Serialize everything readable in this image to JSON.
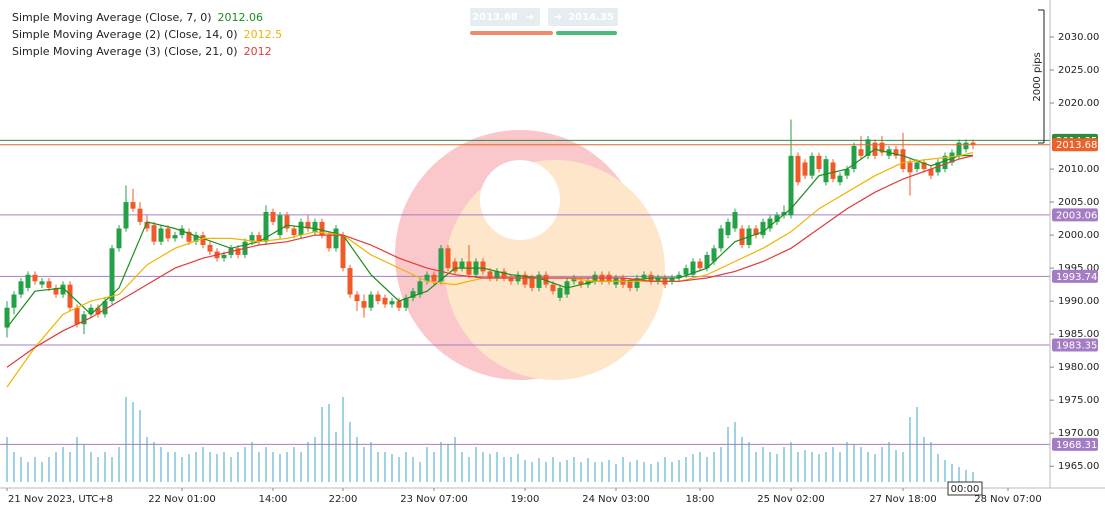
{
  "chart_data": {
    "type": "candlestick",
    "up_color": "#24a148",
    "down_color": "#f05a28",
    "xlim": [
      -1,
      149
    ],
    "ylim": [
      1961.7,
      2035.6
    ],
    "yticks": [
      {
        "value": 1965,
        "label": "1965.00"
      },
      {
        "value": 1970,
        "label": "1970.00"
      },
      {
        "value": 1975,
        "label": "1975.00"
      },
      {
        "value": 1980,
        "label": "1980.00"
      },
      {
        "value": 1985,
        "label": "1985.00"
      },
      {
        "value": 1990,
        "label": "1990.00"
      },
      {
        "value": 1995,
        "label": "1995.00"
      },
      {
        "value": 2000,
        "label": "2000.00"
      },
      {
        "value": 2005,
        "label": "2005.00"
      },
      {
        "value": 2010,
        "label": "2010.00"
      },
      {
        "value": 2020,
        "label": "2020.00"
      },
      {
        "value": 2025,
        "label": "2025.00"
      },
      {
        "value": 2030,
        "label": "2030.00"
      }
    ],
    "xticks": [
      {
        "value": 0,
        "label": "21 Nov 2023, UTC+8"
      },
      {
        "value": 25,
        "label": "22 Nov 01:00"
      },
      {
        "value": 38,
        "label": "14:00"
      },
      {
        "value": 48,
        "label": "22:00"
      },
      {
        "value": 61,
        "label": "23 Nov 07:00"
      },
      {
        "value": 74,
        "label": "19:00"
      },
      {
        "value": 87,
        "label": "24 Nov 03:00"
      },
      {
        "value": 99,
        "label": "18:00"
      },
      {
        "value": 112,
        "label": "25 Nov 02:00"
      },
      {
        "value": 128,
        "label": "27 Nov 18:00"
      },
      {
        "value": 143,
        "label": "28 Nov 07:00"
      }
    ],
    "ohlc": [
      [
        1986,
        1990,
        1984.5,
        1989
      ],
      [
        1989,
        1991.5,
        1988,
        1991
      ],
      [
        1991,
        1993.5,
        1990.5,
        1993
      ],
      [
        1992,
        1994.5,
        1991.5,
        1994
      ],
      [
        1994,
        1994.5,
        1992.5,
        1993
      ],
      [
        1992.5,
        1993.5,
        1992,
        1993
      ],
      [
        1993,
        1993.5,
        1991.5,
        1992
      ],
      [
        1992,
        1992.5,
        1990.5,
        1991
      ],
      [
        1991,
        1993,
        1990.5,
        1992.5
      ],
      [
        1992.5,
        1993,
        1988.5,
        1989
      ],
      [
        1989,
        1989.5,
        1986,
        1986.5
      ],
      [
        1986.5,
        1988.5,
        1985,
        1988
      ],
      [
        1988,
        1989.5,
        1987.5,
        1989
      ],
      [
        1989,
        1989.5,
        1987.5,
        1988
      ],
      [
        1988,
        1990.5,
        1987.5,
        1990
      ],
      [
        1990,
        1998.5,
        1989.5,
        1998
      ],
      [
        1998,
        2001.5,
        1997.5,
        2001
      ],
      [
        2001,
        2007.5,
        2000.5,
        2005
      ],
      [
        2005,
        2007,
        2003.5,
        2004
      ],
      [
        2004,
        2005,
        2001.5,
        2002
      ],
      [
        2002,
        2003,
        2000.5,
        2001
      ],
      [
        2001.5,
        2002,
        1998.5,
        1999
      ],
      [
        1999,
        2001.5,
        1998.5,
        2001
      ],
      [
        2001,
        2001.5,
        1999,
        1999.5
      ],
      [
        1999.5,
        2000.5,
        1999,
        2000
      ],
      [
        2000,
        2001.5,
        1999.5,
        2001
      ],
      [
        2000.5,
        2001,
        1998.5,
        1999
      ],
      [
        1999,
        2000.5,
        1998.5,
        2000
      ],
      [
        2000,
        2000.5,
        1998,
        1998.5
      ],
      [
        1998.5,
        1999,
        1997,
        1997.5
      ],
      [
        1997.5,
        1998,
        1996,
        1996.5
      ],
      [
        1996.5,
        1997.5,
        1996,
        1997
      ],
      [
        1997,
        1998.5,
        1996.5,
        1998
      ],
      [
        1998,
        1998.5,
        1996.5,
        1997
      ],
      [
        1997,
        1999.5,
        1996.5,
        1999
      ],
      [
        1999,
        2000.5,
        1998.5,
        2000
      ],
      [
        2000,
        2000.5,
        1998.5,
        1999
      ],
      [
        1999,
        2004.5,
        1998.5,
        2003.5
      ],
      [
        2003.5,
        2004,
        2001.5,
        2002
      ],
      [
        2000,
        2003.5,
        1999.5,
        2003
      ],
      [
        2003,
        2003.5,
        2000.5,
        2001
      ],
      [
        2001,
        2001.5,
        1999.5,
        2000
      ],
      [
        2000,
        2002.5,
        1999.5,
        2002
      ],
      [
        2002,
        2003,
        2000.5,
        2001
      ],
      [
        2000.5,
        2002.5,
        2000,
        2002
      ],
      [
        2002,
        2002.5,
        1999.5,
        2000
      ],
      [
        2000,
        2000.5,
        1997.5,
        1998
      ],
      [
        1998,
        2001.5,
        1997.5,
        2001
      ],
      [
        2000,
        2000.5,
        1994.5,
        1995
      ],
      [
        1995,
        1995.5,
        1990.5,
        1991
      ],
      [
        1991,
        1991.5,
        1988.5,
        1990
      ],
      [
        1990,
        1991,
        1987.5,
        1989
      ],
      [
        1989,
        1991.5,
        1988.5,
        1991
      ],
      [
        1991,
        1991.5,
        1989.5,
        1990
      ],
      [
        1990.5,
        1991,
        1989,
        1989.5
      ],
      [
        1989.5,
        1990.5,
        1989,
        1990
      ],
      [
        1990,
        1990.5,
        1988.5,
        1989
      ],
      [
        1989,
        1991,
        1988.5,
        1990.5
      ],
      [
        1990.5,
        1992,
        1990,
        1991.5
      ],
      [
        1991,
        1993.5,
        1990.5,
        1993
      ],
      [
        1993,
        1994.5,
        1992.5,
        1994
      ],
      [
        1994,
        1994.5,
        1992.5,
        1993
      ],
      [
        1993,
        1998.5,
        1992.5,
        1998
      ],
      [
        1998,
        1998.5,
        1994.5,
        1995
      ],
      [
        1996,
        1996.5,
        1994,
        1994.5
      ],
      [
        1995,
        1996.5,
        1994.5,
        1996
      ],
      [
        1996,
        1998.5,
        1993.5,
        1994
      ],
      [
        1994,
        1996.5,
        1993.5,
        1996
      ],
      [
        1996,
        1996.5,
        1994,
        1994.5
      ],
      [
        1994.5,
        1995,
        1993,
        1993.5
      ],
      [
        1993.5,
        1995,
        1993,
        1994.5
      ],
      [
        1994.5,
        1995,
        1993,
        1993.5
      ],
      [
        1993.5,
        1994,
        1992.5,
        1993
      ],
      [
        1993,
        1994.5,
        1992.5,
        1994
      ],
      [
        1994,
        1994.5,
        1992,
        1992.5
      ],
      [
        1993.5,
        1994,
        1991.5,
        1992
      ],
      [
        1992,
        1994.5,
        1991.5,
        1994
      ],
      [
        1994,
        1994.5,
        1992,
        1992.5
      ],
      [
        1992.5,
        1993,
        1991,
        1991.5
      ],
      [
        1990.5,
        1992.5,
        1990,
        1992
      ],
      [
        1991,
        1993.5,
        1990.5,
        1993
      ],
      [
        1993,
        1994,
        1992.5,
        1993.5
      ],
      [
        1993,
        1993.5,
        1992,
        1992.5
      ],
      [
        1992.5,
        1993.5,
        1992,
        1993
      ],
      [
        1993,
        1994.5,
        1992.5,
        1994
      ],
      [
        1994,
        1994.5,
        1992.5,
        1993
      ],
      [
        1994,
        1994.5,
        1992.5,
        1993
      ],
      [
        1992.5,
        1994,
        1992,
        1993.5
      ],
      [
        1993.5,
        1994,
        1992,
        1992.5
      ],
      [
        1993,
        1993.5,
        1991.5,
        1992
      ],
      [
        1992,
        1994,
        1991.5,
        1993.5
      ],
      [
        1993.5,
        1994.5,
        1993,
        1994
      ],
      [
        1994,
        1994.5,
        1992.5,
        1993
      ],
      [
        1993,
        1994,
        1992.5,
        1993.5
      ],
      [
        1993.5,
        1994,
        1992,
        1992.5
      ],
      [
        1993,
        1994,
        1992.5,
        1993.5
      ],
      [
        1993.5,
        1994.5,
        1993,
        1994
      ],
      [
        1994,
        1995.5,
        1993.5,
        1995
      ],
      [
        1994,
        1996.5,
        1993.5,
        1996
      ],
      [
        1996,
        1996.5,
        1994.5,
        1995
      ],
      [
        1995,
        1997.5,
        1994.5,
        1997
      ],
      [
        1996,
        1998.5,
        1995.5,
        1998
      ],
      [
        1998,
        2001.5,
        1997.5,
        2001
      ],
      [
        2000,
        2002.5,
        1999.5,
        2002
      ],
      [
        2001,
        2004,
        2000.5,
        2003.5
      ],
      [
        2001,
        2001.5,
        1998,
        1998.5
      ],
      [
        1998.5,
        2001.5,
        1998,
        2001
      ],
      [
        2001,
        2001.5,
        1999.5,
        2000
      ],
      [
        2000,
        2002.5,
        1999.5,
        2002
      ],
      [
        2001,
        2003,
        2000.5,
        2002.5
      ],
      [
        2002,
        2003.5,
        2001.5,
        2003
      ],
      [
        2003,
        2004.5,
        2002.5,
        2003.5
      ],
      [
        2003,
        2017.5,
        2002.5,
        2012
      ],
      [
        2012,
        2012.5,
        2007.5,
        2008
      ],
      [
        2011,
        2011.5,
        2008.5,
        2009
      ],
      [
        2009,
        2012.5,
        2008.5,
        2012
      ],
      [
        2012,
        2012.5,
        2009.5,
        2010
      ],
      [
        2008,
        2012,
        2007.5,
        2011.5
      ],
      [
        2011,
        2011.5,
        2008,
        2008.5
      ],
      [
        2008,
        2009.5,
        2007.5,
        2009
      ],
      [
        2009,
        2010.5,
        2008.5,
        2010
      ],
      [
        2010,
        2014,
        2009.5,
        2013.5
      ],
      [
        2013,
        2015,
        2011.5,
        2012
      ],
      [
        2012,
        2015,
        2011.5,
        2014.5
      ],
      [
        2014,
        2014.5,
        2011.5,
        2012
      ],
      [
        2014,
        2015,
        2012,
        2012.5
      ],
      [
        2012,
        2013.5,
        2011.5,
        2013
      ],
      [
        2013,
        2013.5,
        2011.5,
        2012
      ],
      [
        2013,
        2015.5,
        2009.5,
        2010
      ],
      [
        2011,
        2011.5,
        2006,
        2009.5
      ],
      [
        2010,
        2011.5,
        2009.5,
        2011
      ],
      [
        2011,
        2011.5,
        2009.5,
        2010
      ],
      [
        2010,
        2010.5,
        2008.5,
        2009
      ],
      [
        2009.5,
        2011.5,
        2009,
        2011
      ],
      [
        2010,
        2012.5,
        2009.5,
        2012
      ],
      [
        2011,
        2013,
        2010.5,
        2012.5
      ],
      [
        2012,
        2014.5,
        2011.5,
        2014
      ],
      [
        2013,
        2014.5,
        2012.5,
        2014
      ],
      [
        2014,
        2014.5,
        2013,
        2013.68
      ]
    ],
    "volume": {
      "color": "#3fa7c9",
      "lim": [
        0,
        100
      ],
      "values": [
        45,
        30,
        25,
        20,
        25,
        20,
        25,
        30,
        35,
        30,
        45,
        38,
        30,
        25,
        30,
        25,
        35,
        85,
        80,
        72,
        45,
        40,
        35,
        30,
        30,
        25,
        28,
        30,
        35,
        30,
        28,
        30,
        25,
        30,
        35,
        40,
        30,
        35,
        30,
        28,
        30,
        35,
        30,
        40,
        45,
        75,
        78,
        50,
        85,
        60,
        45,
        35,
        40,
        30,
        30,
        28,
        25,
        30,
        25,
        20,
        35,
        30,
        40,
        38,
        45,
        30,
        25,
        35,
        30,
        28,
        30,
        25,
        25,
        28,
        22,
        20,
        24,
        20,
        25,
        20,
        22,
        25,
        20,
        24,
        20,
        20,
        22,
        18,
        25,
        20,
        22,
        20,
        18,
        20,
        25,
        20,
        22,
        25,
        28,
        30,
        25,
        30,
        35,
        55,
        60,
        45,
        40,
        30,
        35,
        30,
        28,
        35,
        40,
        30,
        32,
        30,
        28,
        30,
        35,
        30,
        40,
        38,
        35,
        30,
        28,
        35,
        40,
        32,
        30,
        65,
        75,
        45,
        40,
        28,
        22,
        18,
        15,
        12,
        10
      ]
    },
    "sma": {
      "x": [
        0,
        4,
        8,
        12,
        16,
        20,
        24,
        28,
        32,
        36,
        40,
        44,
        48,
        52,
        56,
        60,
        64,
        68,
        72,
        76,
        80,
        84,
        88,
        92,
        96,
        100,
        104,
        108,
        112,
        116,
        120,
        124,
        128,
        132,
        136,
        138
      ],
      "series": [
        {
          "name": "Simple Moving Average (Close, 7, 0)",
          "color": "#1a8f1a",
          "values": [
            1986,
            1991.5,
            1992,
            1988,
            1992,
            2002,
            2001,
            1999.5,
            1998,
            1999,
            2001.5,
            2001,
            2000,
            1994,
            1990,
            1991.5,
            1995,
            1995,
            1994,
            1993.5,
            1992,
            1993,
            1993,
            1993.5,
            1993.5,
            1995,
            1999,
            2000.5,
            2004,
            2009,
            2010,
            2013,
            2012,
            2010.5,
            2012,
            2012.06
          ]
        },
        {
          "name": "Simple Moving Average (2) (Close, 14, 0)",
          "color": "#f0b400",
          "values": [
            1977,
            1983,
            1988,
            1990,
            1991,
            1995.5,
            1998,
            1999.5,
            1999.5,
            1999,
            1999.5,
            2000.5,
            2000,
            1997,
            1995,
            1993,
            1992.5,
            1993.5,
            1993.5,
            1993.5,
            1993.5,
            1993,
            1993,
            1993,
            1993,
            1994,
            1996,
            1998,
            2000.5,
            2004,
            2006.5,
            2009,
            2011,
            2011.5,
            2012,
            2012.5
          ]
        },
        {
          "name": "Simple Moving Average (3) (Close, 21, 0)",
          "color": "#e03a3a",
          "values": [
            1980,
            1983,
            1985.5,
            1987.5,
            1990,
            1992.5,
            1995,
            1996.5,
            1997.5,
            1998.5,
            1999,
            2000,
            2000,
            1998.5,
            1996.5,
            1995,
            1994,
            1993.5,
            1993.5,
            1993.5,
            1993.5,
            1993.5,
            1993.5,
            1993,
            1993,
            1993.5,
            1994.5,
            1996,
            1998,
            2001,
            2004,
            2006.5,
            2008.5,
            2010,
            2011.5,
            2012.0
          ]
        }
      ]
    },
    "levels": [
      {
        "value": 2003.06,
        "color": "#a47cc4"
      },
      {
        "value": 1993.74,
        "color": "#a47cc4"
      },
      {
        "value": 1983.35,
        "color": "#a47cc4"
      },
      {
        "value": 1968.31,
        "color": "#a47cc4"
      }
    ],
    "bid": 2013.68,
    "bid_color": "#e8622a",
    "ask": 2014.35,
    "ask_color": "#2e8b3a",
    "measure_label": "2000 pips",
    "crosshair_label": "00:00"
  }
}
